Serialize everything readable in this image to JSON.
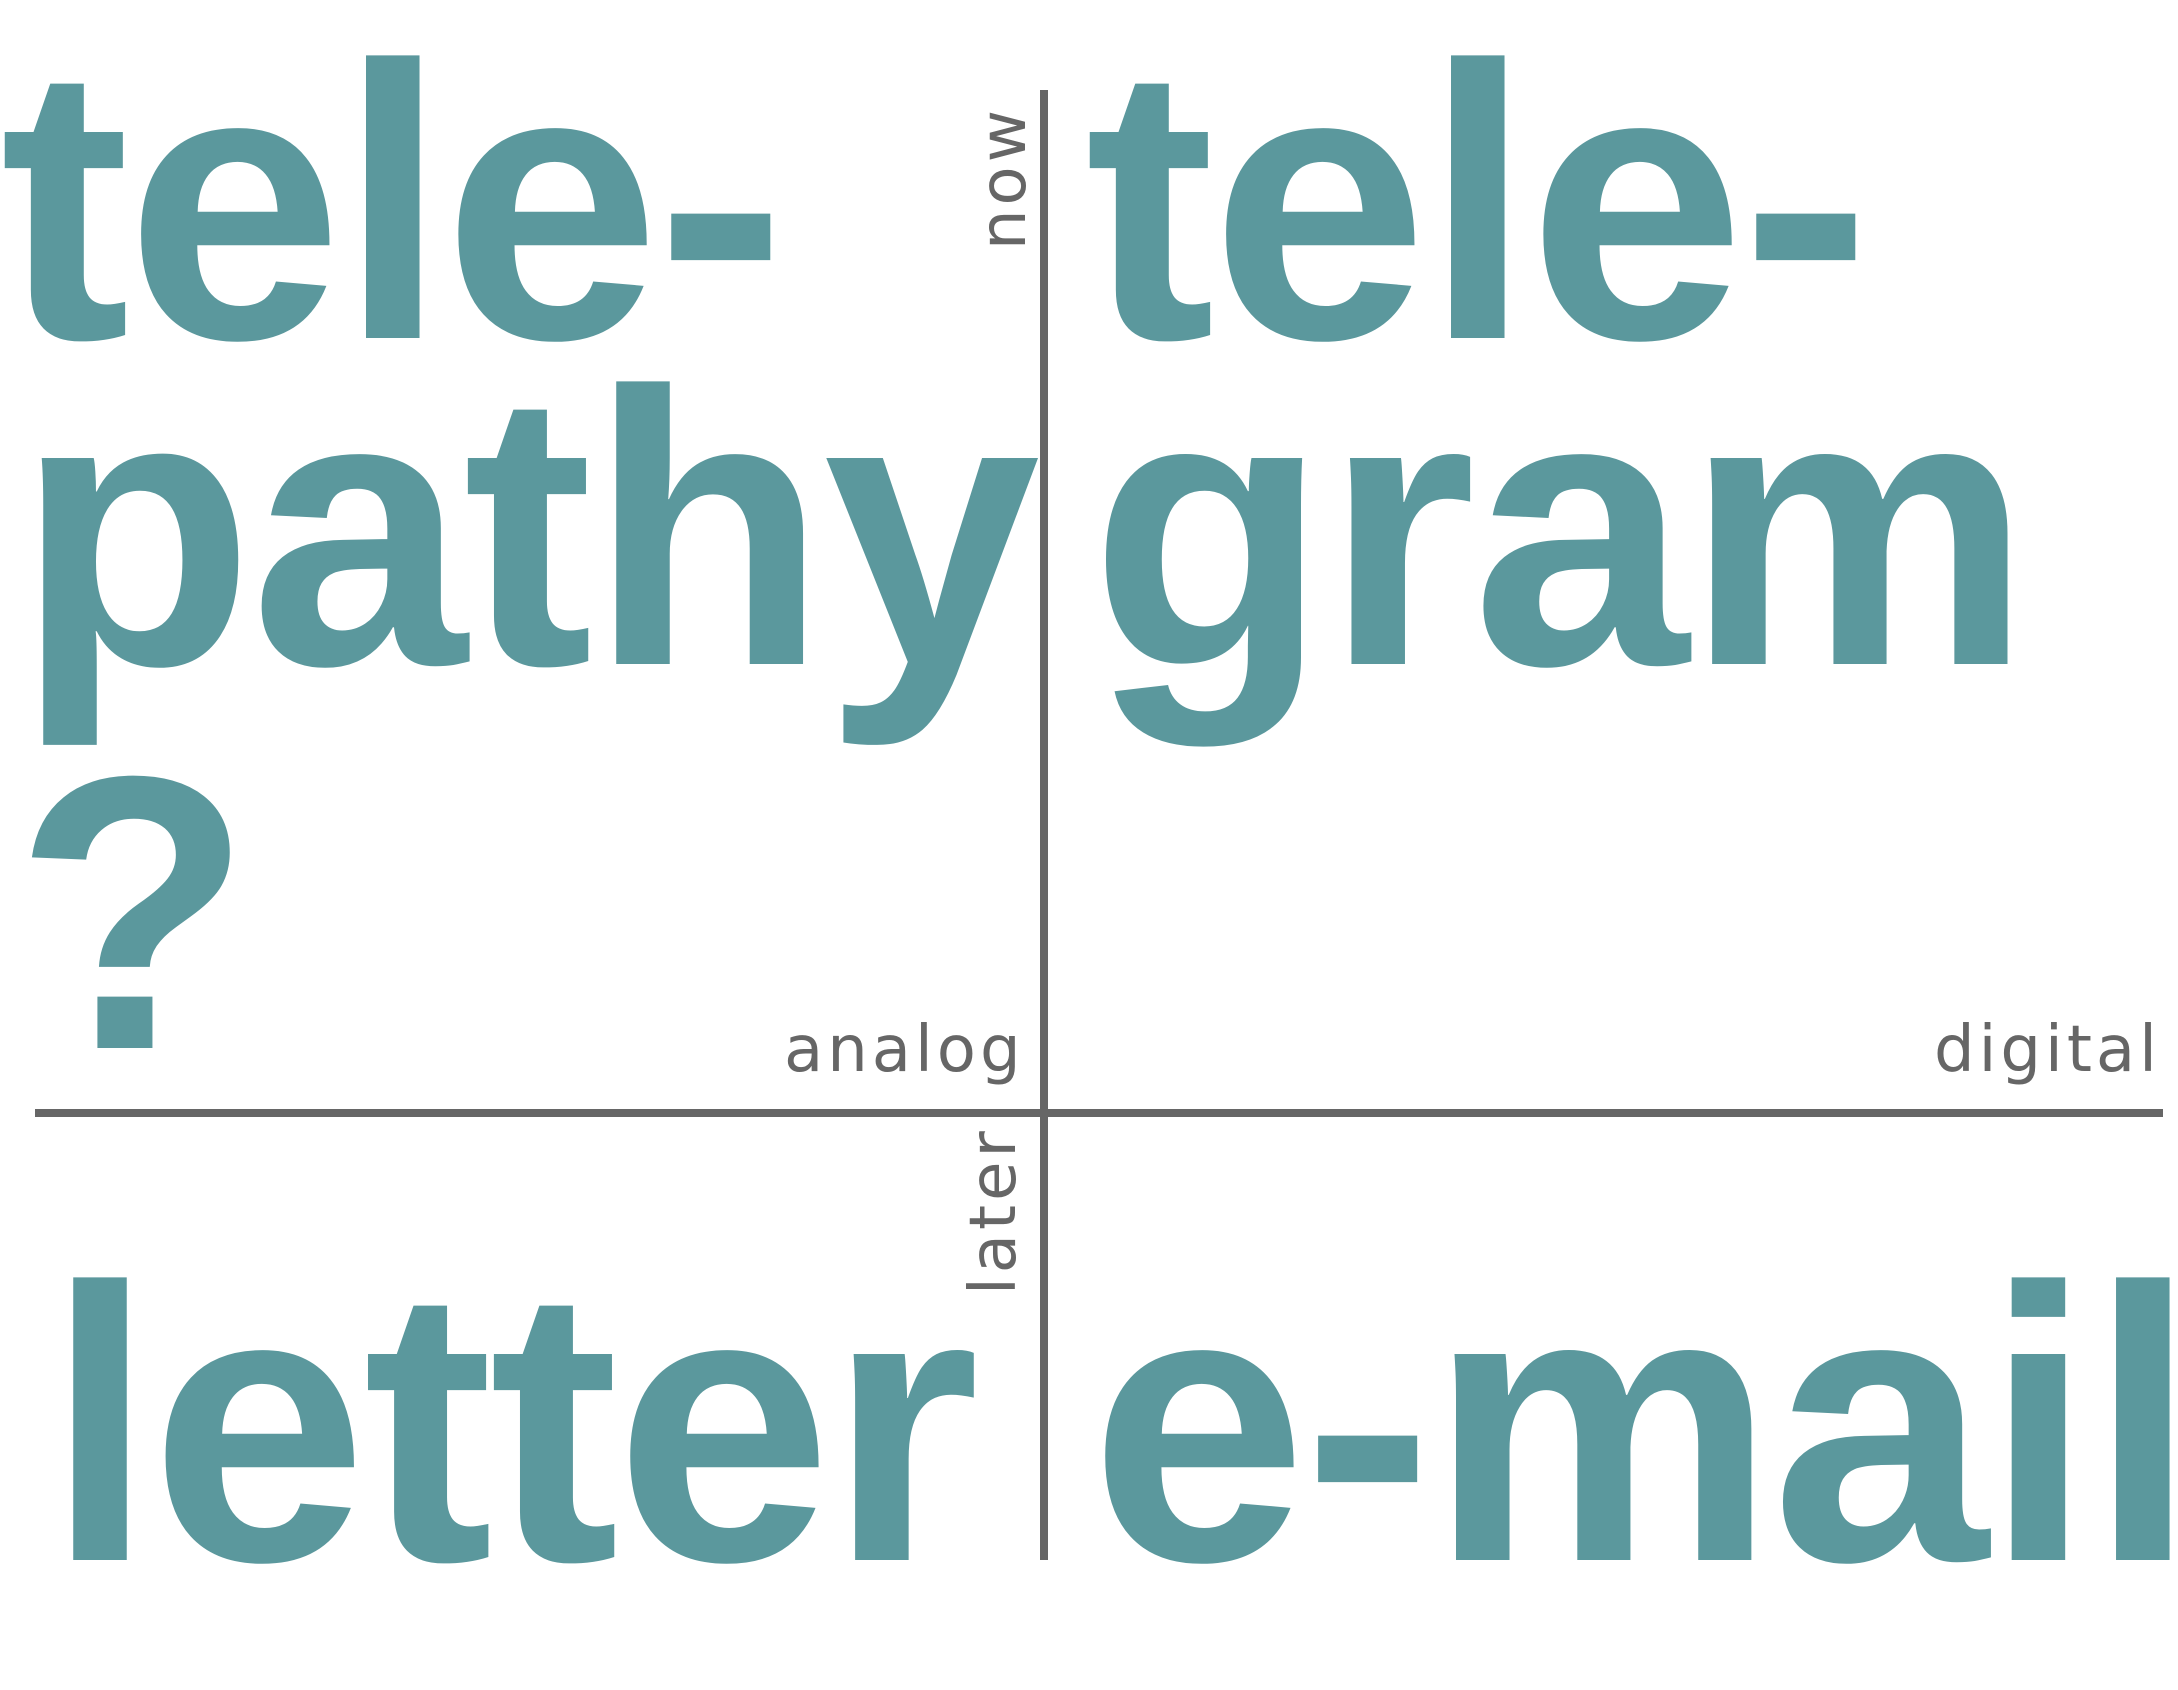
{
  "axes": {
    "vertical": {
      "top_label": "now",
      "bottom_label": "later"
    },
    "horizontal": {
      "left_label": "analog",
      "right_label": "digital"
    }
  },
  "quadrants": {
    "top_left": {
      "lines": [
        "tele-",
        "pathy",
        "?"
      ]
    },
    "top_right": {
      "lines": [
        "tele-",
        "gram"
      ]
    },
    "bottom_left": {
      "lines": [
        "letter"
      ]
    },
    "bottom_right": {
      "lines": [
        "e-mail"
      ]
    }
  },
  "colors": {
    "word": "#5b989d",
    "axis": "#666666",
    "background": "#ffffff"
  }
}
